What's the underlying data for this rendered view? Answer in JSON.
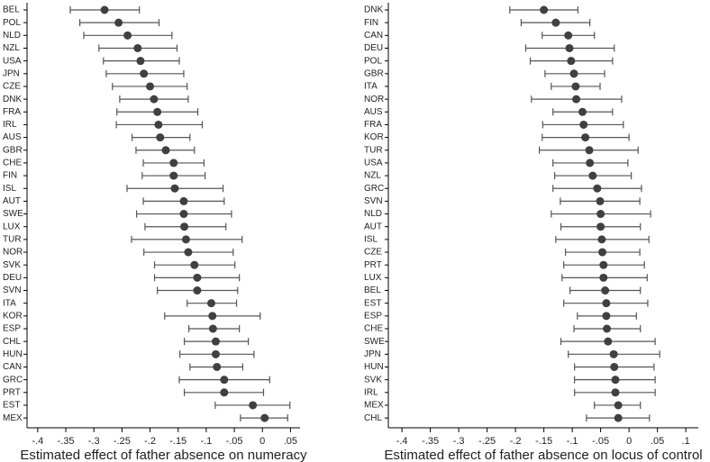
{
  "chart_data": [
    {
      "type": "dot",
      "x_label": "Estimated effect of father absence on numeracy",
      "categories": [
        "BEL",
        "POL",
        "NLD",
        "NZL",
        "USA",
        "JPN",
        "CZE",
        "DNK",
        "FRA",
        "IRL",
        "AUS",
        "GBR",
        "CHE",
        "FIN",
        "ISL",
        "AUT",
        "SWE",
        "LUX",
        "TUR",
        "NOR",
        "SVK",
        "DEU",
        "SVN",
        "ITA",
        "KOR",
        "ESP",
        "CHL",
        "HUN",
        "CAN",
        "GRC",
        "PRT",
        "EST",
        "MEX"
      ],
      "values": [
        -0.281,
        -0.256,
        -0.24,
        -0.222,
        -0.217,
        -0.211,
        -0.2,
        -0.193,
        -0.187,
        -0.185,
        -0.182,
        -0.172,
        -0.158,
        -0.158,
        -0.156,
        -0.14,
        -0.14,
        -0.139,
        -0.136,
        -0.132,
        -0.121,
        -0.116,
        -0.116,
        -0.091,
        -0.089,
        -0.088,
        -0.083,
        -0.083,
        -0.081,
        -0.068,
        -0.068,
        -0.017,
        0.004
      ],
      "lower": [
        -0.342,
        -0.325,
        -0.318,
        -0.291,
        -0.283,
        -0.278,
        -0.267,
        -0.254,
        -0.259,
        -0.26,
        -0.232,
        -0.225,
        -0.212,
        -0.214,
        -0.241,
        -0.212,
        -0.224,
        -0.209,
        -0.233,
        -0.211,
        -0.192,
        -0.192,
        -0.187,
        -0.134,
        -0.174,
        -0.131,
        -0.139,
        -0.147,
        -0.129,
        -0.148,
        -0.139,
        -0.084,
        -0.039
      ],
      "upper": [
        -0.219,
        -0.184,
        -0.161,
        -0.152,
        -0.148,
        -0.14,
        -0.134,
        -0.132,
        -0.115,
        -0.107,
        -0.129,
        -0.121,
        -0.104,
        -0.102,
        -0.07,
        -0.068,
        -0.055,
        -0.065,
        -0.036,
        -0.052,
        -0.049,
        -0.041,
        -0.044,
        -0.046,
        -0.004,
        -0.041,
        -0.025,
        -0.015,
        -0.035,
        0.013,
        0.002,
        0.049,
        0.045
      ],
      "color": "#404040",
      "bar_color": "#555555",
      "xlim": [
        -0.419,
        0.067
      ],
      "xticks": [
        {
          "value": -0.4,
          "label": "-.4"
        },
        {
          "value": -0.35,
          "label": "-.35"
        },
        {
          "value": -0.3,
          "label": "-.3"
        },
        {
          "value": -0.25,
          "label": "-.25"
        },
        {
          "value": -0.2,
          "label": "-.2"
        },
        {
          "value": -0.15,
          "label": "-.15"
        },
        {
          "value": -0.1,
          "label": "-.1"
        },
        {
          "value": -0.05,
          "label": "-.05"
        },
        0,
        {
          "value": 0.05,
          "label": ".05"
        }
      ]
    },
    {
      "type": "dot",
      "x_label": "Estimated effect of father absence on locus of control",
      "categories": [
        "DNK",
        "FIN",
        "CAN",
        "DEU",
        "POL",
        "GBR",
        "ITA",
        "NOR",
        "AUS",
        "FRA",
        "KOR",
        "TUR",
        "USA",
        "NZL",
        "GRC",
        "SVN",
        "NLD",
        "AUT",
        "ISL",
        "CZE",
        "PRT",
        "LUX",
        "BEL",
        "EST",
        "ESP",
        "CHE",
        "SWE",
        "JPN",
        "HUN",
        "SVK",
        "IRL",
        "MEX",
        "CHL"
      ],
      "values": [
        -0.15,
        -0.129,
        -0.107,
        -0.105,
        -0.102,
        -0.097,
        -0.094,
        -0.093,
        -0.082,
        -0.08,
        -0.077,
        -0.07,
        -0.069,
        -0.064,
        -0.056,
        -0.051,
        -0.05,
        -0.05,
        -0.048,
        -0.047,
        -0.045,
        -0.045,
        -0.042,
        -0.04,
        -0.04,
        -0.039,
        -0.037,
        -0.027,
        -0.026,
        -0.024,
        -0.024,
        -0.019,
        -0.019
      ],
      "lower": [
        -0.21,
        -0.19,
        -0.153,
        -0.182,
        -0.174,
        -0.148,
        -0.137,
        -0.172,
        -0.134,
        -0.152,
        -0.153,
        -0.158,
        -0.134,
        -0.131,
        -0.134,
        -0.121,
        -0.137,
        -0.12,
        -0.129,
        -0.112,
        -0.115,
        -0.118,
        -0.104,
        -0.115,
        -0.091,
        -0.097,
        -0.12,
        -0.107,
        -0.096,
        -0.096,
        -0.096,
        -0.061,
        -0.075
      ],
      "upper": [
        -0.09,
        -0.069,
        -0.061,
        -0.026,
        -0.029,
        -0.043,
        -0.051,
        -0.013,
        -0.029,
        -0.01,
        -0.0,
        0.016,
        -0.002,
        0.004,
        0.022,
        0.019,
        0.038,
        0.02,
        0.035,
        0.019,
        0.027,
        0.032,
        0.02,
        0.033,
        0.013,
        0.02,
        0.046,
        0.054,
        0.044,
        0.046,
        0.046,
        0.02,
        0.036
      ],
      "color": "#404040",
      "bar_color": "#555555",
      "xlim": [
        -0.424,
        0.122
      ],
      "xticks": [
        {
          "value": -0.4,
          "label": "-.4"
        },
        {
          "value": -0.35,
          "label": "-.35"
        },
        {
          "value": -0.3,
          "label": "-.3"
        },
        {
          "value": -0.25,
          "label": "-.25"
        },
        {
          "value": -0.2,
          "label": "-.2"
        },
        {
          "value": -0.15,
          "label": "-.15"
        },
        {
          "value": -0.1,
          "label": "-.1"
        },
        {
          "value": -0.05,
          "label": "-.05"
        },
        0,
        {
          "value": 0.05,
          "label": ".05"
        },
        {
          "value": 0.1,
          "label": ".1"
        }
      ]
    }
  ]
}
